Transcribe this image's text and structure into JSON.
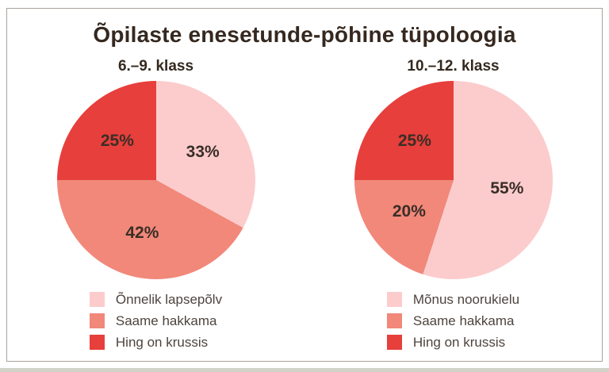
{
  "title": "Õpilaste enesetunde-põhine tüpoloogia",
  "layout": {
    "background_color": "#ffffff",
    "card_border_color": "#aba39d",
    "title_color": "#35281f",
    "label_color": "#3a2e26",
    "legend_text_color": "#4d443e"
  },
  "chart_data": [
    {
      "type": "pie",
      "title": "6.–9. klass",
      "labels": [
        "Õnnelik lapsepõlv",
        "Saame hakkama",
        "Hing on krussis"
      ],
      "values": [
        33,
        42,
        25
      ],
      "value_labels": [
        "33%",
        "42%",
        "25%"
      ],
      "colors": [
        "#fccccd",
        "#f1887a",
        "#e73f3c"
      ],
      "start_angle_deg": 0,
      "direction": "clockwise",
      "legend_position": "bottom"
    },
    {
      "type": "pie",
      "title": "10.–12. klass",
      "labels": [
        "Mõnus noorukielu",
        "Saame hakkama",
        "Hing on krussis"
      ],
      "values": [
        55,
        20,
        25
      ],
      "value_labels": [
        "55%",
        "20%",
        "25%"
      ],
      "colors": [
        "#fccccd",
        "#f1887a",
        "#e73f3c"
      ],
      "start_angle_deg": 0,
      "direction": "clockwise",
      "legend_position": "bottom"
    }
  ]
}
